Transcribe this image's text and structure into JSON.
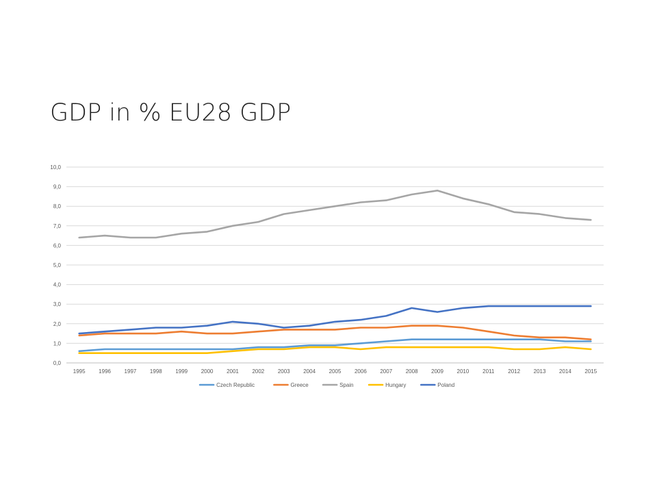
{
  "slide": {
    "title": "GDP in % EU28 GDP"
  },
  "chart_data": {
    "type": "line",
    "title": "",
    "xlabel": "",
    "ylabel": "",
    "ylim": [
      0,
      10
    ],
    "y_ticks": [
      "0,0",
      "1,0",
      "2,0",
      "3,0",
      "4,0",
      "5,0",
      "6,0",
      "7,0",
      "8,0",
      "9,0",
      "10,0"
    ],
    "grid": "horizontal",
    "legend_position": "bottom",
    "categories": [
      "1995",
      "1996",
      "1997",
      "1998",
      "1999",
      "2000",
      "2001",
      "2002",
      "2003",
      "2004",
      "2005",
      "2006",
      "2007",
      "2008",
      "2009",
      "2010",
      "2011",
      "2012",
      "2013",
      "2014",
      "2015"
    ],
    "series": [
      {
        "name": "Czech Republic",
        "color": "#5B9BD5",
        "values": [
          0.6,
          0.7,
          0.7,
          0.7,
          0.7,
          0.7,
          0.7,
          0.8,
          0.8,
          0.9,
          0.9,
          1.0,
          1.1,
          1.2,
          1.2,
          1.2,
          1.2,
          1.2,
          1.2,
          1.1,
          1.1
        ]
      },
      {
        "name": "Greece",
        "color": "#ED7D31",
        "values": [
          1.4,
          1.5,
          1.5,
          1.5,
          1.6,
          1.5,
          1.5,
          1.6,
          1.7,
          1.7,
          1.7,
          1.8,
          1.8,
          1.9,
          1.9,
          1.8,
          1.6,
          1.4,
          1.3,
          1.3,
          1.2
        ]
      },
      {
        "name": "Spain",
        "color": "#A5A5A5",
        "values": [
          6.4,
          6.5,
          6.4,
          6.4,
          6.6,
          6.7,
          7.0,
          7.2,
          7.6,
          7.8,
          8.0,
          8.2,
          8.3,
          8.6,
          8.8,
          8.4,
          8.1,
          7.7,
          7.6,
          7.4,
          7.3
        ]
      },
      {
        "name": "Hungary",
        "color": "#FFC000",
        "values": [
          0.5,
          0.5,
          0.5,
          0.5,
          0.5,
          0.5,
          0.6,
          0.7,
          0.7,
          0.8,
          0.8,
          0.7,
          0.8,
          0.8,
          0.8,
          0.8,
          0.8,
          0.7,
          0.7,
          0.8,
          0.7
        ]
      },
      {
        "name": "Poland",
        "color": "#4472C4",
        "values": [
          1.5,
          1.6,
          1.7,
          1.8,
          1.8,
          1.9,
          2.1,
          2.0,
          1.8,
          1.9,
          2.1,
          2.2,
          2.4,
          2.8,
          2.6,
          2.8,
          2.9,
          2.9,
          2.9,
          2.9,
          2.9
        ]
      }
    ]
  }
}
